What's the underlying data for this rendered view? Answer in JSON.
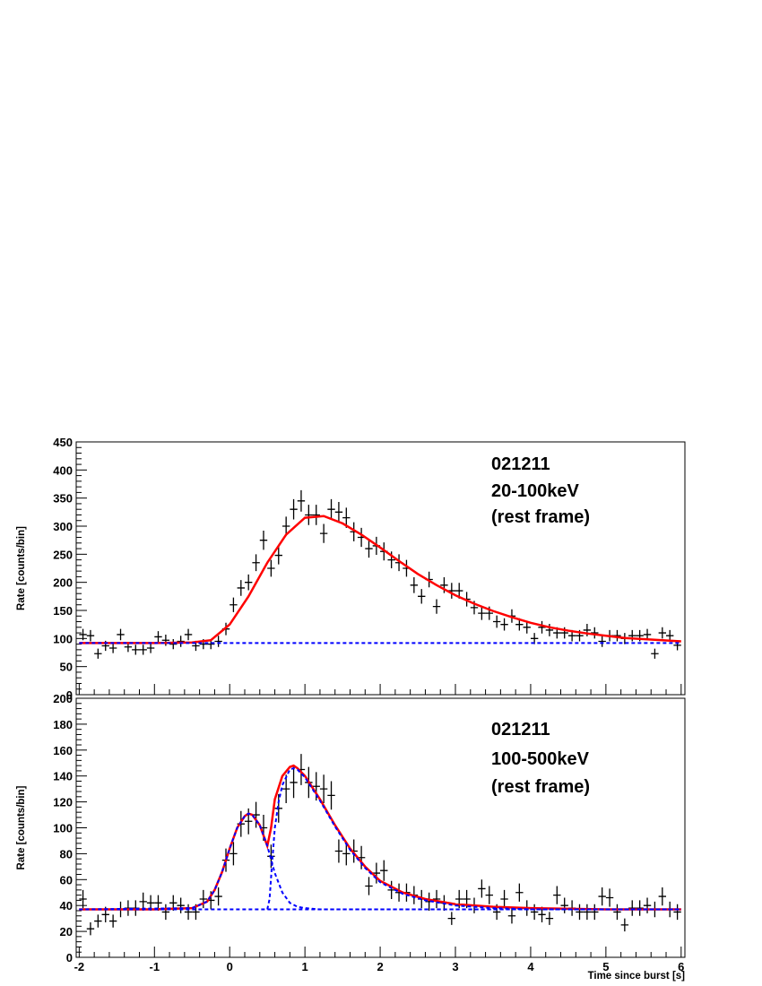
{
  "chart_data": [
    {
      "type": "errorbar",
      "ylabel": "Rate [counts/bin]",
      "annotations": [
        "021211",
        "20-100keV",
        "(rest frame)"
      ],
      "xlim": [
        -2.04,
        6.05
      ],
      "xticks": [
        -2,
        -1,
        0,
        1,
        2,
        3,
        4,
        5,
        6
      ],
      "show_xtick_labels": false,
      "ylim": [
        0,
        450
      ],
      "yticks": [
        0,
        50,
        100,
        150,
        200,
        250,
        300,
        350,
        400,
        450
      ],
      "points": {
        "color": "#000000",
        "xerr": 0.05,
        "x": [
          -1.95,
          -1.85,
          -1.75,
          -1.65,
          -1.55,
          -1.45,
          -1.35,
          -1.25,
          -1.15,
          -1.05,
          -0.95,
          -0.85,
          -0.75,
          -0.65,
          -0.55,
          -0.45,
          -0.35,
          -0.25,
          -0.15,
          -0.05,
          0.05,
          0.15,
          0.25,
          0.35,
          0.45,
          0.55,
          0.65,
          0.75,
          0.85,
          0.95,
          1.05,
          1.15,
          1.25,
          1.35,
          1.45,
          1.55,
          1.65,
          1.75,
          1.85,
          1.95,
          2.05,
          2.15,
          2.25,
          2.35,
          2.45,
          2.55,
          2.65,
          2.75,
          2.85,
          2.95,
          3.05,
          3.15,
          3.25,
          3.35,
          3.45,
          3.55,
          3.65,
          3.75,
          3.85,
          3.95,
          4.05,
          4.15,
          4.25,
          4.35,
          4.45,
          4.55,
          4.65,
          4.75,
          4.85,
          4.95,
          5.05,
          5.15,
          5.25,
          5.35,
          5.45,
          5.55,
          5.65,
          5.75,
          5.85,
          5.95
        ],
        "values": [
          107,
          105,
          73,
          87,
          83,
          107,
          85,
          80,
          80,
          83,
          103,
          97,
          90,
          95,
          107,
          87,
          90,
          90,
          95,
          117,
          160,
          190,
          200,
          235,
          275,
          225,
          248,
          300,
          330,
          345,
          320,
          320,
          287,
          330,
          325,
          315,
          290,
          280,
          260,
          265,
          255,
          240,
          235,
          225,
          195,
          175,
          205,
          157,
          195,
          185,
          185,
          170,
          155,
          145,
          145,
          130,
          125,
          140,
          125,
          120,
          100,
          120,
          115,
          110,
          110,
          105,
          105,
          115,
          110,
          95,
          105,
          105,
          100,
          105,
          105,
          107,
          73,
          110,
          105,
          88
        ],
        "yerr": [
          10,
          10,
          9,
          9,
          9,
          10,
          9,
          9,
          9,
          9,
          10,
          10,
          9,
          10,
          10,
          9,
          9,
          9,
          10,
          11,
          13,
          14,
          14,
          15,
          17,
          15,
          16,
          17,
          18,
          19,
          18,
          18,
          17,
          18,
          18,
          18,
          17,
          17,
          16,
          16,
          16,
          15,
          15,
          15,
          14,
          13,
          14,
          13,
          14,
          14,
          14,
          13,
          12,
          12,
          12,
          11,
          11,
          12,
          11,
          11,
          10,
          11,
          11,
          10,
          10,
          10,
          10,
          11,
          10,
          10,
          10,
          10,
          10,
          10,
          10,
          10,
          9,
          10,
          10,
          9
        ]
      },
      "series": [
        {
          "color": "#ff0000",
          "dashed": false,
          "x": [
            -2,
            -1.5,
            -1,
            -0.5,
            -0.25,
            0,
            0.25,
            0.5,
            0.75,
            1,
            1.25,
            1.5,
            1.75,
            2,
            2.25,
            2.5,
            2.75,
            3,
            3.25,
            3.5,
            3.75,
            4,
            4.25,
            4.5,
            4.75,
            5,
            5.25,
            5.5,
            5.75,
            6
          ],
          "values": [
            92,
            92,
            92,
            93,
            97,
            125,
            175,
            235,
            285,
            315,
            318,
            305,
            285,
            262,
            238,
            215,
            195,
            177,
            162,
            149,
            138,
            128,
            120,
            114,
            109,
            105,
            101,
            99,
            97,
            95
          ]
        },
        {
          "color": "#0000ff",
          "dashed": true,
          "x": [
            -2,
            6
          ],
          "values": [
            92,
            92
          ]
        }
      ]
    },
    {
      "type": "errorbar",
      "ylabel": "Rate [counts/bin]",
      "xlabel": "Time since burst [s]",
      "annotations": [
        "021211",
        "100-500keV",
        "(rest frame)"
      ],
      "xlim": [
        -2.04,
        6.05
      ],
      "xticks": [
        -2,
        -1,
        0,
        1,
        2,
        3,
        4,
        5,
        6
      ],
      "show_xtick_labels": true,
      "ylim": [
        0,
        200
      ],
      "yticks": [
        0,
        20,
        40,
        60,
        80,
        100,
        120,
        140,
        160,
        180,
        200
      ],
      "points": {
        "color": "#000000",
        "xerr": 0.05,
        "x": [
          -1.95,
          -1.85,
          -1.75,
          -1.65,
          -1.55,
          -1.45,
          -1.35,
          -1.25,
          -1.15,
          -1.05,
          -0.95,
          -0.85,
          -0.75,
          -0.65,
          -0.55,
          -0.45,
          -0.35,
          -0.25,
          -0.15,
          -0.05,
          0.05,
          0.15,
          0.25,
          0.35,
          0.45,
          0.55,
          0.65,
          0.75,
          0.85,
          0.95,
          1.05,
          1.15,
          1.25,
          1.35,
          1.45,
          1.55,
          1.65,
          1.75,
          1.85,
          1.95,
          2.05,
          2.15,
          2.25,
          2.35,
          2.45,
          2.55,
          2.65,
          2.75,
          2.85,
          2.95,
          3.05,
          3.15,
          3.25,
          3.35,
          3.45,
          3.55,
          3.65,
          3.75,
          3.85,
          3.95,
          4.05,
          4.15,
          4.25,
          4.35,
          4.45,
          4.55,
          4.65,
          4.75,
          4.85,
          4.95,
          5.05,
          5.15,
          5.25,
          5.35,
          5.45,
          5.55,
          5.65,
          5.75,
          5.85,
          5.95
        ],
        "values": [
          45,
          22,
          28,
          33,
          28,
          37,
          38,
          38,
          43,
          42,
          42,
          35,
          42,
          40,
          35,
          35,
          45,
          44,
          47,
          75,
          80,
          103,
          105,
          110,
          100,
          78,
          115,
          130,
          135,
          145,
          135,
          132,
          130,
          125,
          82,
          80,
          82,
          77,
          55,
          65,
          67,
          52,
          50,
          50,
          48,
          45,
          43,
          45,
          42,
          30,
          45,
          45,
          40,
          53,
          48,
          35,
          45,
          32,
          50,
          38,
          35,
          33,
          30,
          48,
          40,
          38,
          35,
          35,
          35,
          47,
          46,
          35,
          25,
          38,
          38,
          40,
          37,
          47,
          37,
          35
        ],
        "yerr": [
          7,
          5,
          5,
          6,
          5,
          6,
          6,
          6,
          7,
          6,
          6,
          6,
          6,
          6,
          6,
          6,
          7,
          7,
          7,
          9,
          9,
          10,
          10,
          10,
          10,
          9,
          11,
          11,
          12,
          12,
          12,
          11,
          11,
          11,
          9,
          9,
          9,
          9,
          7,
          8,
          8,
          7,
          7,
          7,
          7,
          7,
          7,
          7,
          6,
          5,
          7,
          7,
          6,
          7,
          7,
          6,
          7,
          6,
          7,
          6,
          6,
          6,
          5,
          7,
          6,
          6,
          6,
          6,
          6,
          7,
          7,
          6,
          5,
          6,
          6,
          6,
          6,
          7,
          6,
          6
        ]
      },
      "series": [
        {
          "color": "#ff0000",
          "dashed": false,
          "x": [
            -2,
            -1,
            -0.5,
            -0.3,
            -0.2,
            -0.1,
            0,
            0.1,
            0.2,
            0.25,
            0.3,
            0.4,
            0.5,
            0.55,
            0.6,
            0.7,
            0.8,
            0.85,
            0.9,
            1,
            1.2,
            1.4,
            1.6,
            1.8,
            2,
            2.3,
            2.6,
            3,
            3.5,
            4,
            5,
            6
          ],
          "values": [
            37,
            37,
            38,
            43,
            52,
            66,
            84,
            100,
            109,
            111,
            110,
            102,
            86,
            100,
            122,
            140,
            147,
            148,
            146,
            140,
            122,
            102,
            84,
            70,
            59,
            50,
            45,
            41,
            39,
            38,
            37,
            37
          ]
        },
        {
          "color": "#0000ff",
          "dashed": true,
          "x": [
            -2,
            -0.5,
            -0.3,
            -0.2,
            -0.1,
            0,
            0.1,
            0.2,
            0.25,
            0.3,
            0.4,
            0.5,
            0.6,
            0.7,
            0.8,
            0.9,
            1,
            1.2,
            6
          ],
          "values": [
            37,
            38,
            43,
            52,
            66,
            84,
            100,
            109,
            111,
            110,
            102,
            86,
            65,
            50,
            42,
            39,
            38,
            37,
            37
          ]
        },
        {
          "color": "#0000ff",
          "dashed": true,
          "x": [
            0.5,
            0.53,
            0.56,
            0.6,
            0.65,
            0.7,
            0.8,
            0.85,
            0.9,
            1,
            1.2,
            1.4,
            1.6,
            1.8,
            2,
            2.3,
            2.6,
            3,
            3.5,
            4,
            5,
            6
          ],
          "values": [
            37,
            45,
            70,
            100,
            120,
            133,
            145,
            146,
            145,
            139,
            121,
            101,
            83,
            69,
            58,
            49,
            44,
            40,
            38,
            37,
            37,
            37
          ]
        },
        {
          "color": "#0000ff",
          "dashed": true,
          "x": [
            -2,
            6
          ],
          "values": [
            37,
            37
          ]
        }
      ]
    }
  ]
}
